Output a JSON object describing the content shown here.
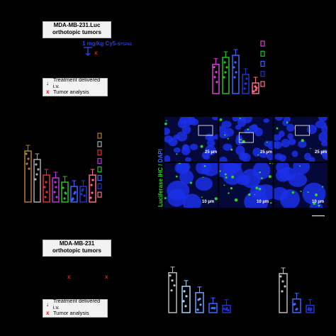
{
  "top_panel": {
    "tumor_box_line1": "MDA-MB-231.Luc",
    "tumor_box_line2": "orthotopic tumors",
    "dose_main": "1 mg/kg Cy5-s",
    "dose_sub": "TGFb1",
    "x_mark": "x",
    "legend": {
      "treatment_arrow": "↓",
      "treatment_label": "Treatment delivered i.v.",
      "analysis_mark": "x",
      "analysis_label": "Tumor analysis"
    }
  },
  "bottom_panel": {
    "tumor_box_line1": "MDA-MB-231",
    "tumor_box_line2": "orthotopic tumors",
    "x_mark_1": "x",
    "x_mark_2": "x",
    "legend": {
      "treatment_arrow": "↓",
      "treatment_label": "Treatment delivered i.v.",
      "analysis_mark": "x",
      "analysis_label": "Tumor analysis"
    }
  },
  "ihc_panel": {
    "axis_label_green": "Luciferase IHC",
    "axis_sep": " / ",
    "axis_label_blue": "DAPI",
    "scale_top": [
      "25 µm",
      "25 µm",
      "25 µm"
    ],
    "scale_bottom": [
      "10 µm",
      "10 µm",
      "10 µm"
    ]
  },
  "colors": {
    "background": "#000000",
    "box_fill": "#f2f2f2",
    "red_mark": "#e21b1b",
    "dose_blue": "#2a3fd6",
    "green": "#2bd42b",
    "dapi_blue": "#1b2fe6"
  },
  "chart_data": [
    {
      "type": "bar",
      "categories": [
        "1",
        "2",
        "3",
        "4",
        "5"
      ],
      "values": [
        55,
        68,
        72,
        36,
        20
      ],
      "colors": [
        "#d640d6",
        "#22c322",
        "#3a66ff",
        "#2233cc",
        "#ff6b8a"
      ],
      "ylim": [
        0,
        100
      ]
    },
    {
      "type": "bar",
      "categories": [
        "1",
        "2",
        "3",
        "4",
        "5",
        "6",
        "7",
        "8"
      ],
      "values": [
        72,
        60,
        38,
        34,
        28,
        22,
        22,
        38
      ],
      "colors": [
        "#b87a2f",
        "#aaaaaa",
        "#e0303a",
        "#b33ad6",
        "#22c322",
        "#3a66ff",
        "#2233cc",
        "#ff6b8a"
      ],
      "ylim": [
        0,
        100
      ]
    },
    {
      "type": "bar",
      "categories": [
        "1",
        "2",
        "3",
        "4",
        "5"
      ],
      "values": [
        88,
        58,
        44,
        20,
        16
      ],
      "colors": [
        "#bbbbbb",
        "#a8d4ff",
        "#6ea0ff",
        "#3a66ff",
        "#2233cc"
      ],
      "ylim": [
        0,
        100
      ]
    },
    {
      "type": "bar",
      "categories": [
        "1",
        "2",
        "3"
      ],
      "values": [
        86,
        30,
        16
      ],
      "colors": [
        "#bbbbbb",
        "#3a66ff",
        "#2233cc"
      ],
      "ylim": [
        0,
        100
      ]
    }
  ]
}
